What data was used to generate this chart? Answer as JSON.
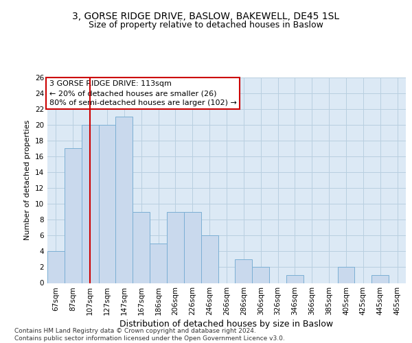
{
  "title": "3, GORSE RIDGE DRIVE, BASLOW, BAKEWELL, DE45 1SL",
  "subtitle": "Size of property relative to detached houses in Baslow",
  "xlabel": "Distribution of detached houses by size in Baslow",
  "ylabel": "Number of detached properties",
  "categories": [
    "67sqm",
    "87sqm",
    "107sqm",
    "127sqm",
    "147sqm",
    "167sqm",
    "186sqm",
    "206sqm",
    "226sqm",
    "246sqm",
    "266sqm",
    "286sqm",
    "306sqm",
    "326sqm",
    "346sqm",
    "366sqm",
    "385sqm",
    "405sqm",
    "425sqm",
    "445sqm",
    "465sqm"
  ],
  "values": [
    4,
    17,
    20,
    20,
    21,
    9,
    5,
    9,
    9,
    6,
    0,
    3,
    2,
    0,
    1,
    0,
    0,
    2,
    0,
    1,
    0
  ],
  "bar_color": "#c9d9ed",
  "bar_edge_color": "#7bafd4",
  "vline_x": 2.0,
  "vline_color": "#cc0000",
  "annotation_text": "3 GORSE RIDGE DRIVE: 113sqm\n← 20% of detached houses are smaller (26)\n80% of semi-detached houses are larger (102) →",
  "annotation_box_color": "#ffffff",
  "annotation_box_edge": "#cc0000",
  "grid_color": "#b8cfe0",
  "background_color": "#dce9f5",
  "ylim": [
    0,
    26
  ],
  "yticks": [
    0,
    2,
    4,
    6,
    8,
    10,
    12,
    14,
    16,
    18,
    20,
    22,
    24,
    26
  ],
  "footer_line1": "Contains HM Land Registry data © Crown copyright and database right 2024.",
  "footer_line2": "Contains public sector information licensed under the Open Government Licence v3.0.",
  "title_fontsize": 10,
  "subtitle_fontsize": 9,
  "xlabel_fontsize": 9,
  "ylabel_fontsize": 8,
  "tick_fontsize": 7.5,
  "annotation_fontsize": 8,
  "footer_fontsize": 6.5
}
